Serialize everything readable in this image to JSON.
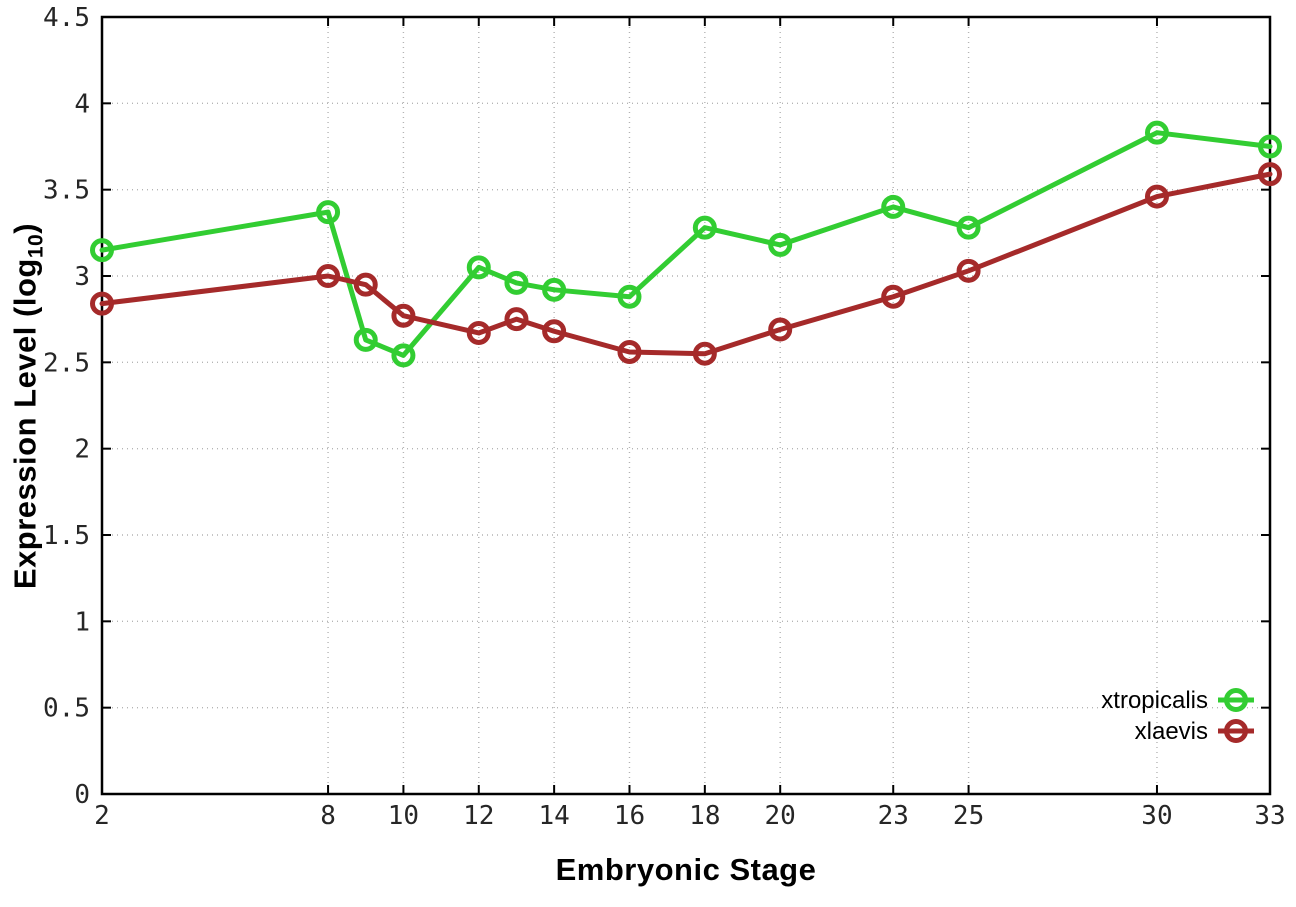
{
  "chart_data": {
    "type": "line",
    "title": "",
    "xlabel": "Embryonic Stage",
    "ylabel_main": "Expression Level (log",
    "ylabel_sub": "10",
    "ylabel_close": ")",
    "xlim": [
      2,
      33
    ],
    "ylim": [
      0,
      4.5
    ],
    "grid": true,
    "x": [
      2,
      8,
      9,
      10,
      12,
      13,
      14,
      16,
      18,
      20,
      23,
      25,
      30,
      33
    ],
    "xticks": {
      "values": [
        2,
        8,
        10,
        12,
        14,
        16,
        18,
        20,
        23,
        25,
        30,
        33
      ],
      "labels": [
        "2",
        "8",
        "10",
        "12",
        "14",
        "16",
        "18",
        "20",
        "23",
        "25",
        "30",
        "33"
      ]
    },
    "yticks": {
      "values": [
        0,
        0.5,
        1,
        1.5,
        2,
        2.5,
        3,
        3.5,
        4,
        4.5
      ],
      "labels": [
        "0",
        "0.5",
        "1",
        "1.5",
        "2",
        "2.5",
        "3",
        "3.5",
        "4",
        "4.5"
      ]
    },
    "series": [
      {
        "name": "xtropicalis",
        "color": "#32cd32",
        "marker": "open-circle",
        "values": [
          3.15,
          3.37,
          2.63,
          2.54,
          3.05,
          2.96,
          2.92,
          2.88,
          3.28,
          3.18,
          3.4,
          3.28,
          3.83,
          3.75
        ]
      },
      {
        "name": "xlaevis",
        "color": "#a52a2a",
        "marker": "open-circle",
        "values": [
          2.84,
          3.0,
          2.95,
          2.77,
          2.67,
          2.75,
          2.68,
          2.56,
          2.55,
          2.69,
          2.88,
          3.03,
          3.46,
          3.59
        ]
      }
    ],
    "legend": {
      "position": "inside-bottom-right",
      "entries": [
        "xtropicalis",
        "xlaevis"
      ]
    },
    "colors": {
      "axis": "#000000",
      "grid": "#b4b4b4",
      "tick_text": "#262626"
    }
  }
}
